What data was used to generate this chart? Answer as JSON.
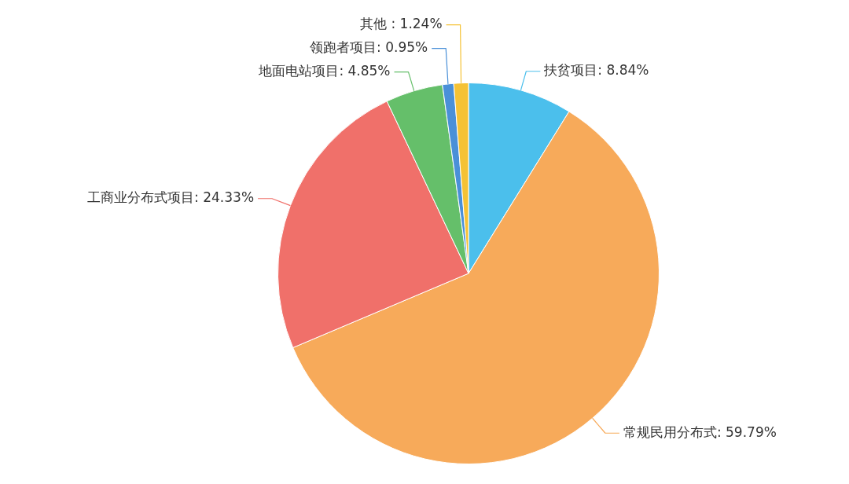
{
  "chart_data": {
    "type": "pie",
    "categories": [
      "扶贫项目",
      "常规民用分布式",
      "工商业分布式项目",
      "地面电站项目",
      "领跑者项目",
      "其他"
    ],
    "values": [
      8.84,
      59.79,
      24.33,
      4.85,
      0.95,
      1.24
    ],
    "colors": [
      "#4bbfec",
      "#f7aa5a",
      "#f0706a",
      "#65bf6a",
      "#4a90d8",
      "#f5c235"
    ],
    "value_labels": [
      ": 8.84%",
      ": 59.79%",
      ": 24.33%",
      ": 4.85%",
      ": 0.95%",
      " : 1.24%"
    ],
    "legend": false
  }
}
